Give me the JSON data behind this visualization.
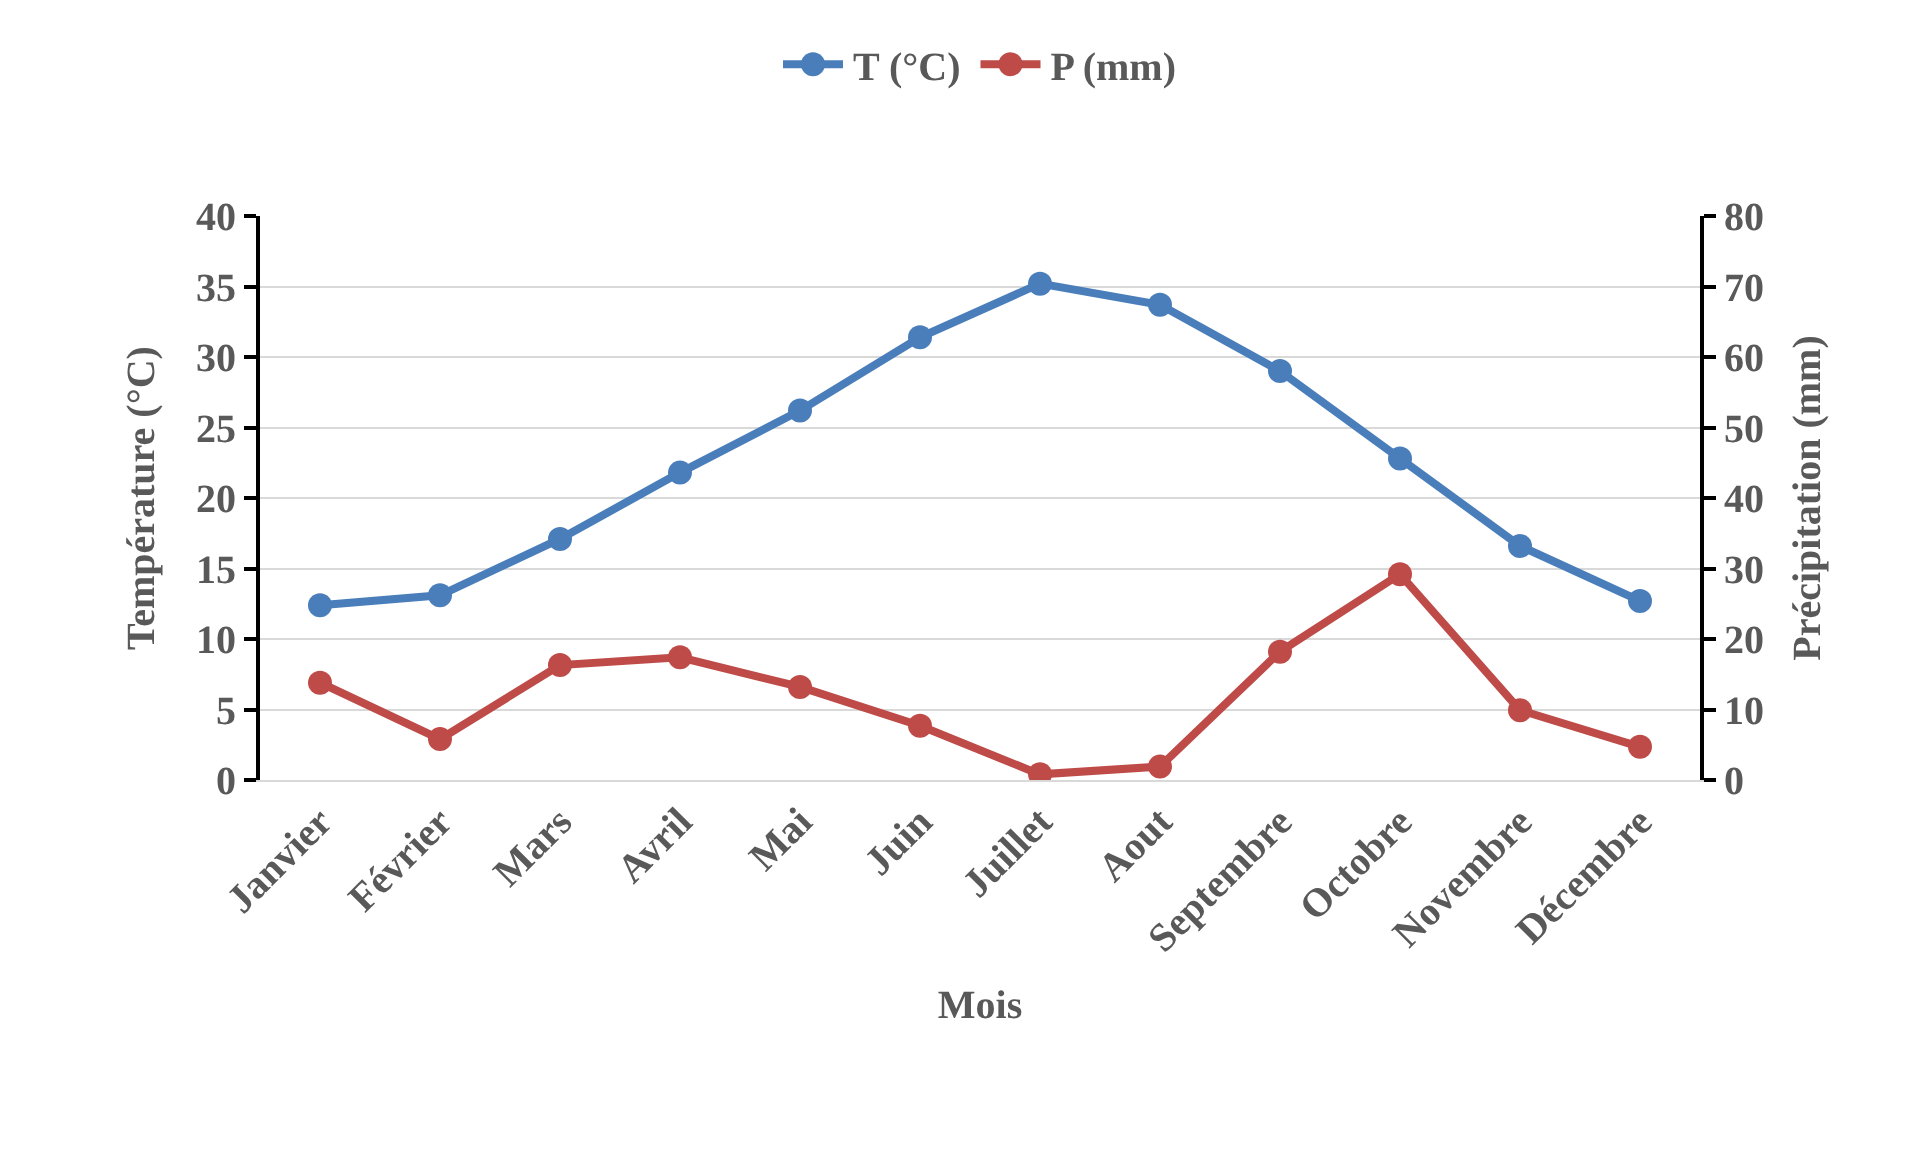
{
  "chart_data": {
    "type": "line",
    "xlabel": "Mois",
    "ylabel": "Température (°C)",
    "y2label": "Précipitation (mm)",
    "categories": [
      "Janvier",
      "Février",
      "Mars",
      "Avril",
      "Mai",
      "Juin",
      "Juillet",
      "Aout",
      "Septembre",
      "Octobre",
      "Novembre",
      "Décembre"
    ],
    "series": [
      {
        "name": "T (°C)",
        "color": "#4a7ebb",
        "values": [
          12.4,
          13.1,
          17.1,
          21.8,
          26.2,
          31.4,
          35.2,
          33.7,
          29.0,
          22.8,
          16.6,
          12.7
        ]
      },
      {
        "name": "P (mm)",
        "color": "#be4b48",
        "axis": "y2",
        "values": [
          13.8,
          5.8,
          16.3,
          17.4,
          13.2,
          7.7,
          0.8,
          1.9,
          18.2,
          29.2,
          9.9,
          4.7
        ]
      }
    ],
    "ylim": [
      0,
      40
    ],
    "yticks": [
      0,
      5,
      10,
      15,
      20,
      25,
      30,
      35,
      40
    ],
    "y2lim": [
      0,
      80
    ],
    "y2ticks": [
      0,
      10,
      20,
      30,
      40,
      50,
      60,
      70,
      80
    ],
    "grid": "y",
    "legend": "top",
    "marker": "circle",
    "line_style": "solid"
  }
}
